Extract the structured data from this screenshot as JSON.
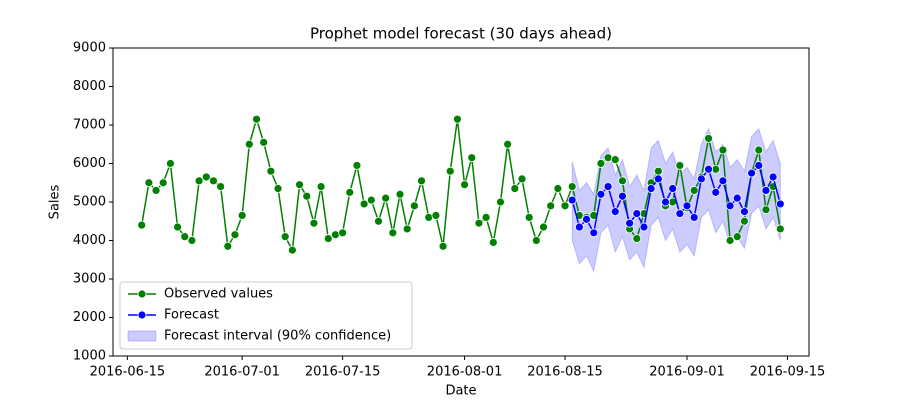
{
  "chart_data": {
    "type": "line",
    "title": "Prophet model forecast (30 days ahead)",
    "xlabel": "Date",
    "ylabel": "Sales",
    "x": [
      "2016-06-17",
      "2016-06-18",
      "2016-06-19",
      "2016-06-20",
      "2016-06-21",
      "2016-06-22",
      "2016-06-23",
      "2016-06-24",
      "2016-06-25",
      "2016-06-26",
      "2016-06-27",
      "2016-06-28",
      "2016-06-29",
      "2016-06-30",
      "2016-07-01",
      "2016-07-02",
      "2016-07-03",
      "2016-07-04",
      "2016-07-05",
      "2016-07-06",
      "2016-07-07",
      "2016-07-08",
      "2016-07-09",
      "2016-07-10",
      "2016-07-11",
      "2016-07-12",
      "2016-07-13",
      "2016-07-14",
      "2016-07-15",
      "2016-07-16",
      "2016-07-17",
      "2016-07-18",
      "2016-07-19",
      "2016-07-20",
      "2016-07-21",
      "2016-07-22",
      "2016-07-23",
      "2016-07-24",
      "2016-07-25",
      "2016-07-26",
      "2016-07-27",
      "2016-07-28",
      "2016-07-29",
      "2016-07-30",
      "2016-07-31",
      "2016-08-01",
      "2016-08-02",
      "2016-08-03",
      "2016-08-04",
      "2016-08-05",
      "2016-08-06",
      "2016-08-07",
      "2016-08-08",
      "2016-08-09",
      "2016-08-10",
      "2016-08-11",
      "2016-08-12",
      "2016-08-13",
      "2016-08-14",
      "2016-08-15",
      "2016-08-16",
      "2016-08-17",
      "2016-08-18",
      "2016-08-19",
      "2016-08-20",
      "2016-08-21",
      "2016-08-22",
      "2016-08-23",
      "2016-08-24",
      "2016-08-25",
      "2016-08-26",
      "2016-08-27",
      "2016-08-28",
      "2016-08-29",
      "2016-08-30",
      "2016-08-31",
      "2016-09-01",
      "2016-09-02",
      "2016-09-03",
      "2016-09-04",
      "2016-09-05",
      "2016-09-06",
      "2016-09-07",
      "2016-09-08",
      "2016-09-09",
      "2016-09-10",
      "2016-09-11",
      "2016-09-12",
      "2016-09-13",
      "2016-09-14"
    ],
    "series": [
      {
        "name": "Observed values",
        "color": "#008000",
        "values": [
          4400,
          5500,
          5300,
          5500,
          6000,
          4350,
          4100,
          4000,
          5550,
          5650,
          5550,
          5400,
          3850,
          4150,
          4650,
          6500,
          7150,
          6550,
          5800,
          5350,
          4100,
          3750,
          5450,
          5150,
          4450,
          5400,
          4050,
          4150,
          4200,
          5250,
          5950,
          4950,
          5050,
          4500,
          5100,
          4200,
          5200,
          4300,
          4900,
          5550,
          4600,
          4650,
          3850,
          5800,
          7150,
          5450,
          6150,
          4450,
          4600,
          3950,
          5000,
          6500,
          5350,
          5600,
          4600,
          4000,
          4350,
          4900,
          5350,
          4900,
          5400,
          4650,
          4600,
          4650,
          6000,
          6150,
          6100,
          5550,
          4300,
          4050,
          4700,
          5500,
          5800,
          4900,
          5000,
          5950,
          4850,
          5300,
          5650,
          6650,
          5850,
          6350,
          4000,
          4100,
          4500,
          5750,
          6350,
          4800,
          5400,
          4300
        ]
      },
      {
        "name": "Forecast",
        "color": "#0000ff",
        "values": [
          null,
          null,
          null,
          null,
          null,
          null,
          null,
          null,
          null,
          null,
          null,
          null,
          null,
          null,
          null,
          null,
          null,
          null,
          null,
          null,
          null,
          null,
          null,
          null,
          null,
          null,
          null,
          null,
          null,
          null,
          null,
          null,
          null,
          null,
          null,
          null,
          null,
          null,
          null,
          null,
          null,
          null,
          null,
          null,
          null,
          null,
          null,
          null,
          null,
          null,
          null,
          null,
          null,
          null,
          null,
          null,
          null,
          null,
          null,
          null,
          5050,
          4350,
          4550,
          4200,
          5200,
          5400,
          4750,
          5150,
          4450,
          4700,
          4350,
          5350,
          5600,
          5000,
          5350,
          4700,
          4900,
          4600,
          5600,
          5850,
          5250,
          5550,
          4900,
          5100,
          4750,
          5750,
          5950,
          5300,
          5650,
          4950
        ]
      },
      {
        "name": "Forecast interval (90% confidence)",
        "color": "#0000ff",
        "type": "band",
        "lower": [
          null,
          null,
          null,
          null,
          null,
          null,
          null,
          null,
          null,
          null,
          null,
          null,
          null,
          null,
          null,
          null,
          null,
          null,
          null,
          null,
          null,
          null,
          null,
          null,
          null,
          null,
          null,
          null,
          null,
          null,
          null,
          null,
          null,
          null,
          null,
          null,
          null,
          null,
          null,
          null,
          null,
          null,
          null,
          null,
          null,
          null,
          null,
          null,
          null,
          null,
          null,
          null,
          null,
          null,
          null,
          null,
          null,
          null,
          null,
          null,
          4000,
          3400,
          3600,
          3200,
          4200,
          4400,
          3700,
          4100,
          3500,
          3700,
          3300,
          4400,
          4600,
          4000,
          4300,
          3700,
          3900,
          3600,
          4600,
          4800,
          4200,
          4500,
          3900,
          4100,
          3800,
          4700,
          4900,
          4300,
          4600,
          4000
        ],
        "upper": [
          null,
          null,
          null,
          null,
          null,
          null,
          null,
          null,
          null,
          null,
          null,
          null,
          null,
          null,
          null,
          null,
          null,
          null,
          null,
          null,
          null,
          null,
          null,
          null,
          null,
          null,
          null,
          null,
          null,
          null,
          null,
          null,
          null,
          null,
          null,
          null,
          null,
          null,
          null,
          null,
          null,
          null,
          null,
          null,
          null,
          null,
          null,
          null,
          null,
          null,
          null,
          null,
          null,
          null,
          null,
          null,
          null,
          null,
          null,
          null,
          6050,
          5300,
          5500,
          5200,
          6200,
          6400,
          5700,
          6100,
          5400,
          5700,
          5300,
          6400,
          6600,
          6000,
          6300,
          5700,
          5900,
          5600,
          6500,
          6900,
          6300,
          6500,
          5900,
          6100,
          5800,
          6700,
          6900,
          6300,
          6600,
          6000
        ]
      }
    ],
    "xlim": [
      "2016-06-13",
      "2016-09-18"
    ],
    "xticks": [
      "2016-06-15",
      "2016-07-01",
      "2016-07-15",
      "2016-08-01",
      "2016-08-15",
      "2016-09-01",
      "2016-09-15"
    ],
    "ylim": [
      1000,
      9000
    ],
    "yticks": [
      1000,
      2000,
      3000,
      4000,
      5000,
      6000,
      7000,
      8000,
      9000
    ],
    "grid": false,
    "legend": "lower left"
  }
}
